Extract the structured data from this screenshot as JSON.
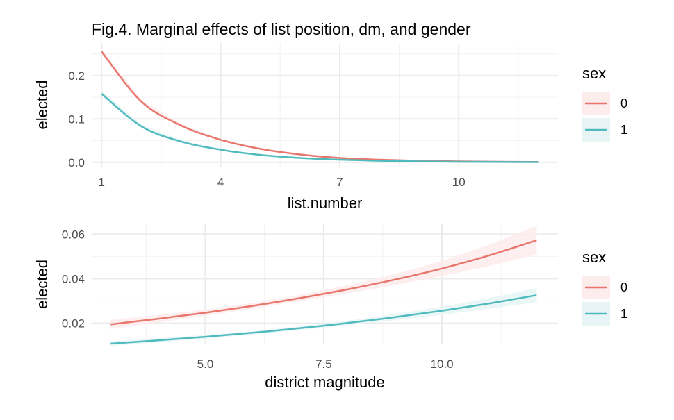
{
  "title": "Fig.4. Marginal effects of list position, dm, and gender",
  "colors": {
    "sex0": "#E8766C",
    "sex1": "#4FBBBF",
    "ribbon0": "#FDECEC",
    "ribbon1": "#E8F5F6",
    "grid_major": "#EBEBEB",
    "grid_minor": "#F4F4F4",
    "text": "#4D4D4D"
  },
  "chart_data": [
    {
      "type": "line",
      "xlabel": "list.number",
      "ylabel": "elected",
      "xlim": [
        0.75,
        12.5
      ],
      "ylim": [
        -0.01,
        0.275
      ],
      "x_ticks": [
        1,
        4,
        7,
        10
      ],
      "x_tick_labels": [
        "1",
        "4",
        "7",
        "10"
      ],
      "y_ticks": [
        0.0,
        0.1,
        0.2
      ],
      "y_tick_labels": [
        "0.0",
        "0.1",
        "0.2"
      ],
      "legend": {
        "title": "sex",
        "position": "right",
        "entries": [
          "0",
          "1"
        ]
      },
      "grid": true,
      "series": [
        {
          "name": "0",
          "x": [
            1,
            2,
            3,
            4,
            5,
            6,
            7,
            8,
            9,
            10,
            11,
            12
          ],
          "y": [
            0.255,
            0.14,
            0.085,
            0.052,
            0.031,
            0.018,
            0.01,
            0.006,
            0.0035,
            0.002,
            0.0012,
            0.0007
          ],
          "lower": [
            0.249,
            0.136,
            0.082,
            0.05,
            0.029,
            0.017,
            0.009,
            0.005,
            0.003,
            0.0017,
            0.001,
            0.0005
          ],
          "upper": [
            0.261,
            0.144,
            0.088,
            0.054,
            0.033,
            0.019,
            0.011,
            0.007,
            0.004,
            0.0023,
            0.0014,
            0.0009
          ]
        },
        {
          "name": "1",
          "x": [
            1,
            2,
            3,
            4,
            5,
            6,
            7,
            8,
            9,
            10,
            11,
            12
          ],
          "y": [
            0.158,
            0.083,
            0.048,
            0.029,
            0.017,
            0.01,
            0.006,
            0.0035,
            0.002,
            0.0012,
            0.0007,
            0.0004
          ],
          "lower": [
            0.151,
            0.079,
            0.045,
            0.027,
            0.016,
            0.009,
            0.005,
            0.003,
            0.0017,
            0.001,
            0.0005,
            0.0003
          ],
          "upper": [
            0.165,
            0.087,
            0.051,
            0.031,
            0.018,
            0.011,
            0.007,
            0.004,
            0.0023,
            0.0014,
            0.0009,
            0.0005
          ]
        }
      ]
    },
    {
      "type": "line",
      "xlabel": "district magnitude",
      "ylabel": "elected",
      "xlim": [
        2.6,
        12.45
      ],
      "ylim": [
        0.0105,
        0.0645
      ],
      "x_ticks": [
        5.0,
        7.5,
        10.0
      ],
      "x_tick_labels": [
        "5.0",
        "7.5",
        "10.0"
      ],
      "y_ticks": [
        0.02,
        0.04,
        0.06
      ],
      "y_tick_labels": [
        "0.02",
        "0.04",
        "0.06"
      ],
      "legend": {
        "title": "sex",
        "position": "right",
        "entries": [
          "0",
          "1"
        ]
      },
      "grid": true,
      "series": [
        {
          "name": "0",
          "x": [
            3,
            4,
            5,
            6,
            7,
            8,
            9,
            10,
            11,
            12
          ],
          "y": [
            0.0195,
            0.022,
            0.0247,
            0.0278,
            0.0313,
            0.0352,
            0.0396,
            0.0446,
            0.0505,
            0.0573
          ],
          "lower": [
            0.0175,
            0.0203,
            0.0233,
            0.0265,
            0.0299,
            0.0334,
            0.0371,
            0.0412,
            0.0457,
            0.0508
          ],
          "upper": [
            0.0215,
            0.0237,
            0.0261,
            0.0291,
            0.0327,
            0.037,
            0.0421,
            0.048,
            0.0553,
            0.0638
          ]
        },
        {
          "name": "1",
          "x": [
            3,
            4,
            5,
            6,
            7,
            8,
            9,
            10,
            11,
            12
          ],
          "y": [
            0.0108,
            0.0123,
            0.0139,
            0.0157,
            0.0178,
            0.0201,
            0.0227,
            0.0256,
            0.0289,
            0.0326
          ],
          "lower": [
            0.0098,
            0.0114,
            0.0131,
            0.015,
            0.017,
            0.0191,
            0.0213,
            0.0238,
            0.0265,
            0.0294
          ],
          "upper": [
            0.0118,
            0.0132,
            0.0147,
            0.0164,
            0.0186,
            0.0211,
            0.0241,
            0.0274,
            0.0313,
            0.0358
          ]
        }
      ]
    }
  ]
}
